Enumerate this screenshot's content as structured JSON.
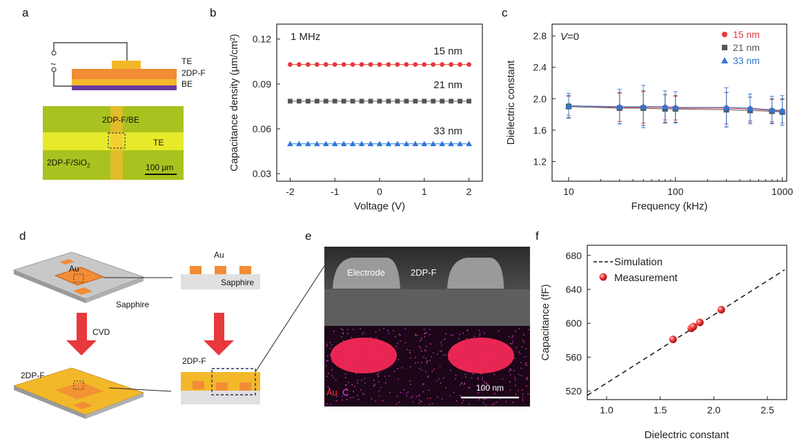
{
  "panel_labels": [
    "a",
    "b",
    "c",
    "d",
    "e",
    "f"
  ],
  "colors": {
    "red": "#e8383c",
    "gray": "#555555",
    "blue": "#2f77d6",
    "orange": "#f28c36",
    "gold": "#f3b82a",
    "purple": "#6a3aa0",
    "yellow": "#e9ea2c"
  },
  "panel_a": {
    "te": "TE",
    "film": "2DP-F",
    "be": "BE",
    "tilde": "~",
    "micro_top": "2DP-F/BE",
    "micro_te": "TE",
    "micro_bottom": "2DP-F/SiO",
    "micro_bottom_sub": "2",
    "scale": "100 µm"
  },
  "panel_d": {
    "au_left": "Au",
    "sapphire_left": "Sapphire",
    "au_right": "Au",
    "sapphire_right": "Sapphire",
    "cvd": "CVD",
    "film_left": "2DP-F",
    "film_right": "2DP-F"
  },
  "panel_e": {
    "electrode": "Electrode",
    "film": "2DP-F",
    "au": "Au",
    "c": "C",
    "scale": "100 nm"
  },
  "chart_data": [
    {
      "type": "scatter",
      "panel": "b",
      "annotation": "1 MHz",
      "xlabel": "Voltage (V)",
      "ylabel": "Capacitance density  (µm/cm²)",
      "xlim": [
        -2.3,
        2.3
      ],
      "ylim": [
        0.025,
        0.13
      ],
      "xticks": [
        "-2",
        "-1",
        "0",
        "1",
        "2"
      ],
      "yticks": [
        "0.03",
        "0.06",
        "0.09",
        "0.12"
      ],
      "x": [
        -2.0,
        -1.8,
        -1.6,
        -1.4,
        -1.2,
        -1.0,
        -0.8,
        -0.6,
        -0.4,
        -0.2,
        0.0,
        0.2,
        0.4,
        0.6,
        0.8,
        1.0,
        1.2,
        1.4,
        1.6,
        1.8,
        2.0
      ],
      "series": [
        {
          "name": "15 nm",
          "y": 0.103,
          "marker": "circle",
          "color": "#e8383c"
        },
        {
          "name": "21 nm",
          "y": 0.0785,
          "marker": "square",
          "color": "#555555"
        },
        {
          "name": "33 nm",
          "y": 0.05,
          "marker": "triangle",
          "color": "#2f77d6"
        }
      ]
    },
    {
      "type": "line",
      "panel": "c",
      "annotation_italic": "V",
      "annotation_rest": "=0",
      "xlabel": "Frequency (kHz)",
      "ylabel": "Dielectric constant",
      "xscale": "log",
      "xlim": [
        7,
        1100
      ],
      "ylim": [
        0.95,
        2.95
      ],
      "xticks": [
        "10",
        "100",
        "1000"
      ],
      "yticks": [
        "1.2",
        "1.6",
        "2.0",
        "2.4",
        "2.8"
      ],
      "legend": "top-right",
      "x": [
        10,
        30,
        50,
        80,
        100,
        300,
        500,
        800,
        1000
      ],
      "series": [
        {
          "name": "15 nm",
          "marker": "circle",
          "color": "#e8383c",
          "values": [
            1.91,
            1.89,
            1.89,
            1.89,
            1.88,
            1.88,
            1.87,
            1.85,
            1.84
          ],
          "err": [
            0.12,
            0.18,
            0.2,
            0.16,
            0.15,
            0.2,
            0.15,
            0.14,
            0.15
          ]
        },
        {
          "name": "21 nm",
          "marker": "square",
          "color": "#555555",
          "values": [
            1.9,
            1.88,
            1.88,
            1.87,
            1.87,
            1.86,
            1.85,
            1.84,
            1.83
          ],
          "err": [
            0.14,
            0.2,
            0.22,
            0.18,
            0.17,
            0.22,
            0.17,
            0.16,
            0.17
          ]
        },
        {
          "name": "33 nm",
          "marker": "triangle",
          "color": "#2f77d6",
          "values": [
            1.91,
            1.9,
            1.9,
            1.9,
            1.89,
            1.89,
            1.88,
            1.86,
            1.85
          ],
          "err": [
            0.16,
            0.22,
            0.27,
            0.2,
            0.2,
            0.25,
            0.18,
            0.17,
            0.19
          ]
        }
      ]
    },
    {
      "type": "scatter",
      "panel": "f",
      "xlabel": "Dielectric constant",
      "ylabel": "Capacitance (fF)",
      "xlim": [
        0.82,
        2.68
      ],
      "ylim": [
        510,
        692
      ],
      "xticks": [
        "1.0",
        "1.5",
        "2.0",
        "2.5"
      ],
      "yticks": [
        "520",
        "560",
        "600",
        "640",
        "680"
      ],
      "legend": "top-left",
      "series": [
        {
          "name": "Simulation",
          "style": "dashed-line",
          "x": [
            0.82,
            2.66
          ],
          "y": [
            515,
            663
          ]
        },
        {
          "name": "Measurement",
          "style": "sphere",
          "color": "#e8383c",
          "x": [
            1.62,
            1.79,
            1.81,
            1.87,
            2.07
          ],
          "y": [
            581,
            594,
            596,
            601,
            616
          ]
        }
      ]
    }
  ]
}
